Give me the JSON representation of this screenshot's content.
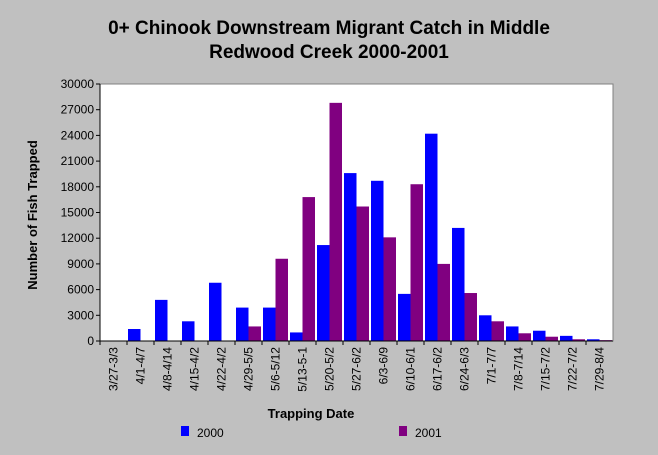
{
  "chart_data": {
    "type": "bar",
    "title_line1": "0+ Chinook Downstream Migrant Catch in Middle",
    "title_line2": "Redwood Creek 2000-2001",
    "xlabel": "Trapping Date",
    "ylabel": "Number of Fish Trapped",
    "ylim": [
      0,
      30000
    ],
    "yticks": [
      0,
      3000,
      6000,
      9000,
      12000,
      15000,
      18000,
      21000,
      24000,
      27000,
      30000
    ],
    "grid": false,
    "legend_position": "bottom",
    "categories": [
      "3/27-3/3",
      "4/1-4/7",
      "4/8-4/14",
      "4/15-4/2",
      "4/22-4/2",
      "4/29-5/5",
      "5/6-5/12",
      "5/13-5-1",
      "5/20-5/2",
      "5/27-6/2",
      "6/3-6/9",
      "6/10-6/1",
      "6/17-6/2",
      "6/24-6/3",
      "7/1-7/7",
      "7/8-7/14",
      "7/15-7/2",
      "7/22-7/2",
      "7/29-8/4"
    ],
    "series": [
      {
        "name": "2000",
        "color": "#0000ff",
        "values": [
          0,
          1400,
          4800,
          2300,
          6800,
          3900,
          3900,
          1000,
          11200,
          19600,
          18700,
          5500,
          24200,
          13200,
          3000,
          1700,
          1200,
          600,
          200
        ]
      },
      {
        "name": "2001",
        "color": "#800080",
        "values": [
          0,
          0,
          0,
          0,
          0,
          1700,
          9600,
          16800,
          27800,
          15700,
          12100,
          18300,
          9000,
          5600,
          2300,
          900,
          500,
          200,
          100
        ]
      }
    ]
  },
  "colors": {
    "background": "#c0c0c0",
    "plot_background": "#ffffff",
    "series_2000": "#0000ff",
    "series_2001": "#800080"
  }
}
